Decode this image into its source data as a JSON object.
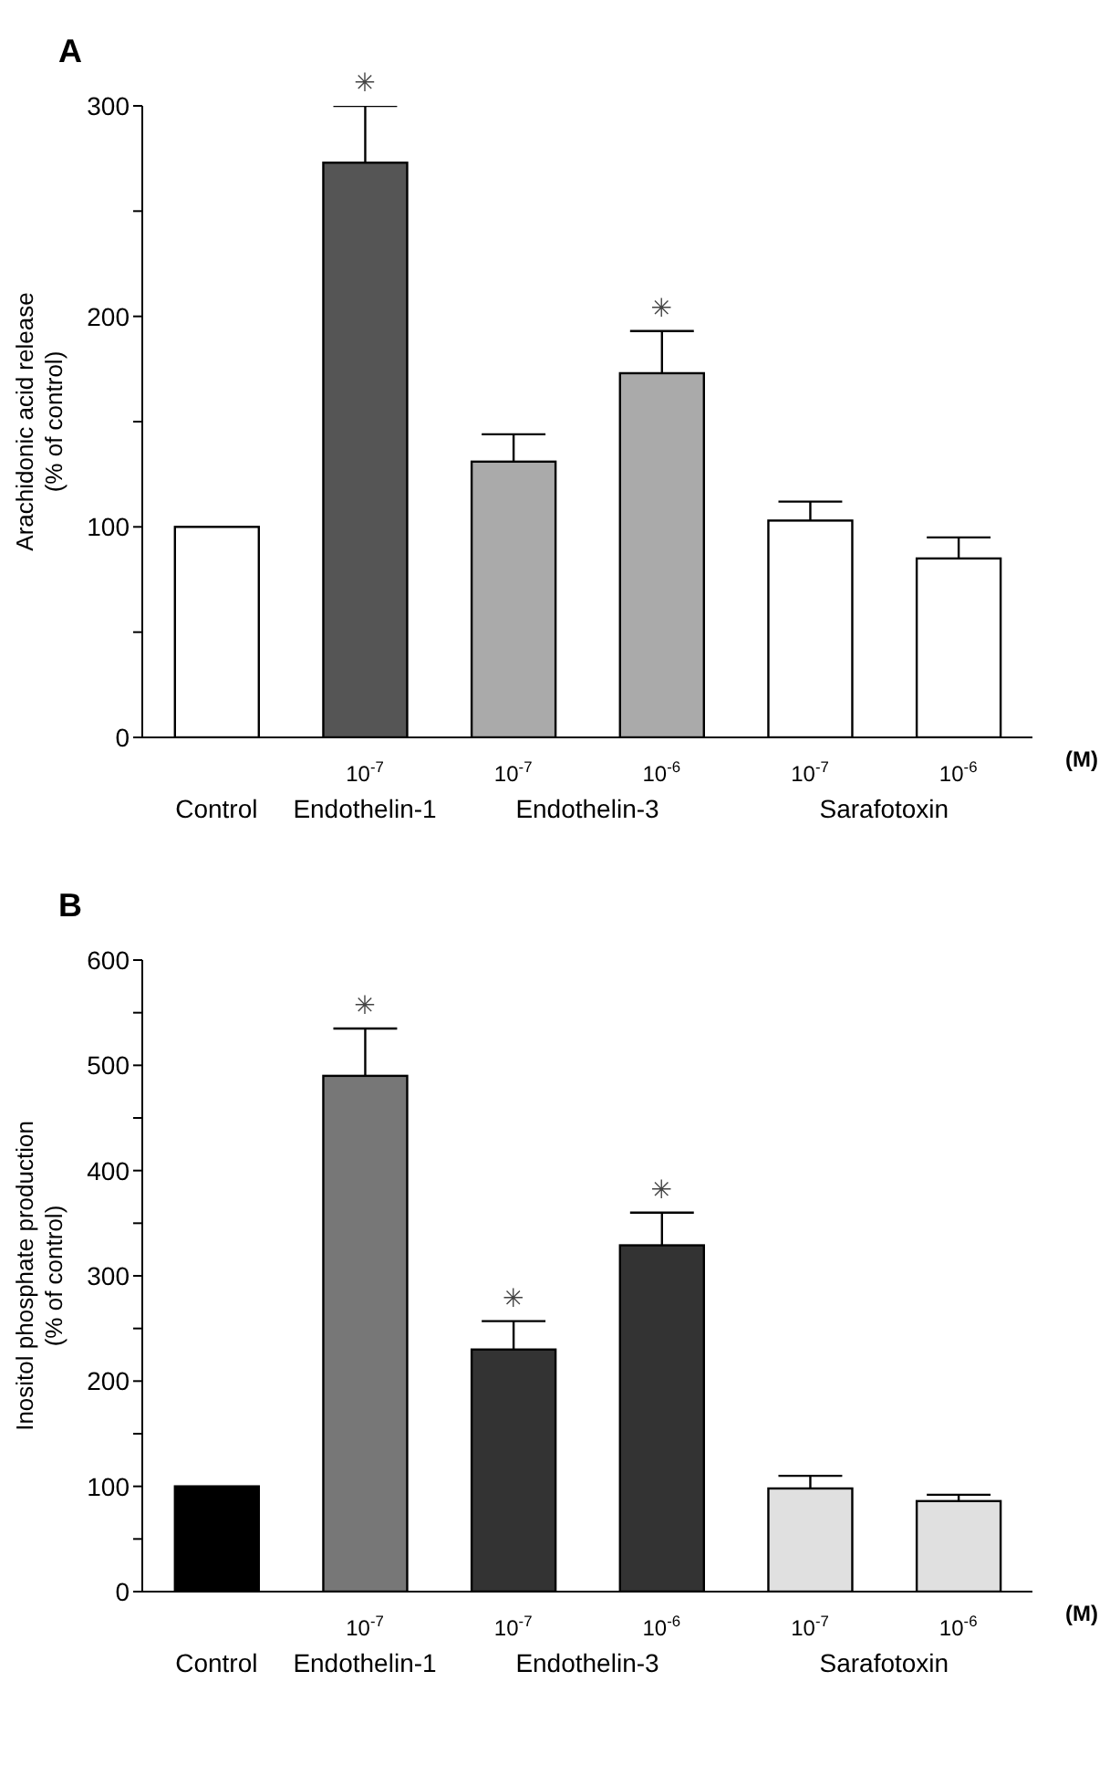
{
  "chart_data": [
    {
      "type": "bar",
      "title": "A",
      "ylabel": "Arachidonic acid release\n(% of control)",
      "categories": [
        null,
        "10$^{-7}$",
        "10$^{-7}$",
        "10$^{-6}$",
        "10$^{-7}$",
        "10$^{-6}$"
      ],
      "ylim": [
        0,
        300
      ],
      "yticks": [
        0,
        {
          "value": 50,
          "label": null
        },
        100,
        {
          "value": 150,
          "label": null
        },
        200,
        {
          "value": 250,
          "label": null
        },
        300
      ],
      "legend": false,
      "annotations": [
        "(M)"
      ],
      "series": [
        {
          "name": "Control",
          "color": "#ffffff",
          "values": [
            100,
            null,
            null,
            null,
            null,
            null
          ]
        },
        {
          "name": "Endothelin-1",
          "color": "#555555",
          "values": [
            null,
            273,
            null,
            null,
            null,
            null
          ],
          "errors": [
            null,
            27,
            null,
            null,
            null,
            null
          ],
          "value_labels": [
            null,
            "✳",
            null,
            null,
            null,
            null
          ]
        },
        {
          "name": "Endothelin-3",
          "color": "#aaaaaa",
          "values": [
            null,
            null,
            131,
            173,
            null,
            null
          ],
          "errors": [
            null,
            null,
            13,
            20,
            null,
            null
          ],
          "value_labels": [
            null,
            null,
            null,
            "✳",
            null,
            null
          ]
        },
        {
          "name": "Sarafotoxin",
          "color": "#ffffff",
          "values": [
            null,
            null,
            null,
            null,
            103,
            85
          ],
          "errors": [
            null,
            null,
            null,
            null,
            9,
            10
          ]
        }
      ]
    },
    {
      "type": "bar",
      "title": "B",
      "ylabel": "Inositol phosphate production\n(% of control)",
      "categories": [
        null,
        "10$^{-7}$",
        "10$^{-7}$",
        "10$^{-6}$",
        "10$^{-7}$",
        "10$^{-6}$"
      ],
      "ylim": [
        0,
        600
      ],
      "yticks": [
        0,
        {
          "value": 50,
          "label": null
        },
        100,
        {
          "value": 150,
          "label": null
        },
        200,
        {
          "value": 250,
          "label": null
        },
        300,
        {
          "value": 350,
          "label": null
        },
        400,
        {
          "value": 450,
          "label": null
        },
        500,
        {
          "value": 550,
          "label": null
        },
        600
      ],
      "legend": false,
      "annotations": [
        "(M)"
      ],
      "series": [
        {
          "name": "Control",
          "color": "#000000",
          "values": [
            100,
            null,
            null,
            null,
            null,
            null
          ]
        },
        {
          "name": "Endothelin-1",
          "color": "#777777",
          "values": [
            null,
            490,
            null,
            null,
            null,
            null
          ],
          "errors": [
            null,
            45,
            null,
            null,
            null,
            null
          ],
          "value_labels": [
            null,
            "✳",
            null,
            null,
            null,
            null
          ]
        },
        {
          "name": "Endothelin-3",
          "color": "#333333",
          "values": [
            null,
            null,
            230,
            329,
            null,
            null
          ],
          "errors": [
            null,
            null,
            27,
            31,
            null,
            null
          ],
          "value_labels": [
            null,
            null,
            "✳",
            "✳",
            null,
            null
          ]
        },
        {
          "name": "Sarafotoxin",
          "color": "#e0e0e0",
          "values": [
            null,
            null,
            null,
            null,
            98,
            86
          ],
          "errors": [
            null,
            null,
            null,
            null,
            12,
            6
          ]
        }
      ]
    }
  ]
}
